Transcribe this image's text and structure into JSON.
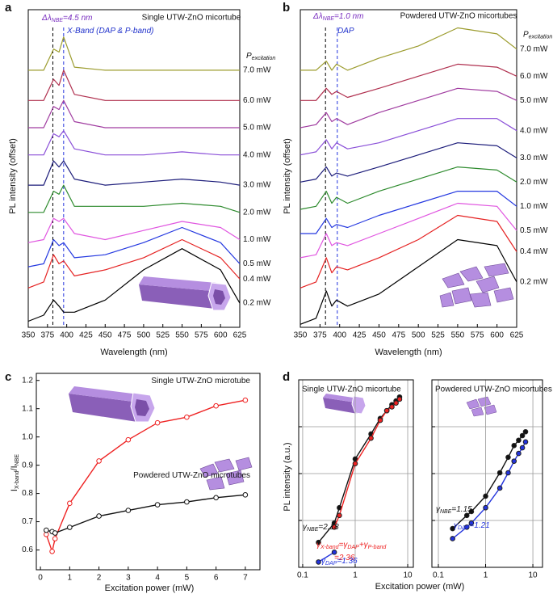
{
  "chart_data": [
    {
      "type": "line",
      "panel_label": "a",
      "title": "Single UTW-ZnO micortube",
      "xlabel": "Wavelength (nm)",
      "ylabel": "PL intensity (offset)",
      "x": [
        350,
        370,
        383,
        390,
        396,
        410,
        450,
        500,
        550,
        600,
        625
      ],
      "xlim": [
        350,
        625
      ],
      "xticks": [
        350,
        375,
        400,
        425,
        450,
        475,
        500,
        525,
        550,
        575,
        600,
        625
      ],
      "ylim": [
        0,
        105
      ],
      "legend": "right",
      "legend_title": [
        "P",
        "excitation"
      ],
      "annotations": [
        {
          "text": [
            "Δλ",
            "NBE",
            "=4.5 nm"
          ],
          "color": "#7a2fc0"
        },
        {
          "text": [
            "X-Band (DAP & P-band)"
          ],
          "color": "#2233cc"
        }
      ],
      "reference_lines": [
        {
          "x": 382,
          "color": "#000000"
        },
        {
          "x": 396,
          "color": "#2233dd"
        }
      ],
      "series": [
        {
          "name": "7.0 mW",
          "color": "#9c9c2e",
          "values": [
            85,
            85,
            92,
            91,
            96,
            86,
            85,
            85,
            85,
            85,
            85
          ]
        },
        {
          "name": "6.0 mW",
          "color": "#b0304f",
          "values": [
            75,
            75,
            82,
            80,
            85,
            77,
            75,
            75,
            75,
            75,
            75
          ]
        },
        {
          "name": "5.0 mW",
          "color": "#a03ca0",
          "values": [
            66,
            66,
            73,
            72,
            75,
            68,
            66,
            66,
            66,
            66,
            66
          ]
        },
        {
          "name": "4.0 mW",
          "color": "#8a4fd8",
          "values": [
            57,
            57,
            64,
            63,
            65,
            59,
            57,
            57,
            58,
            57,
            57
          ]
        },
        {
          "name": "3.0 mW",
          "color": "#1c1c7a",
          "values": [
            47,
            47,
            55,
            53,
            55,
            49,
            47,
            48,
            49,
            48,
            47
          ]
        },
        {
          "name": "2.0 mW",
          "color": "#2e8b2e",
          "values": [
            38,
            38,
            45,
            44,
            47,
            40,
            40,
            40,
            41,
            40,
            38
          ]
        },
        {
          "name": "1.0 mW",
          "color": "#e055e0",
          "values": [
            28,
            29,
            36,
            35,
            36,
            31,
            29,
            32,
            35,
            33,
            29
          ]
        },
        {
          "name": "0.5 mW",
          "color": "#2438e0",
          "values": [
            20,
            21,
            29,
            27,
            28,
            23,
            24,
            28,
            33,
            28,
            21
          ]
        },
        {
          "name": "0.4 mW",
          "color": "#e52222",
          "values": [
            13,
            15,
            24,
            21,
            22,
            17,
            19,
            23,
            29,
            23,
            16
          ]
        },
        {
          "name": "0.2 mW",
          "color": "#000000",
          "values": [
            2,
            4,
            9,
            7,
            5,
            5,
            9,
            19,
            26,
            19,
            8
          ]
        }
      ]
    },
    {
      "type": "line",
      "panel_label": "b",
      "title": "Powdered UTW-ZnO micortubes",
      "xlabel": "Wavelength (nm)",
      "ylabel": "PL intensity (offset)",
      "x": [
        350,
        370,
        383,
        390,
        396,
        410,
        450,
        500,
        550,
        600,
        625
      ],
      "xlim": [
        350,
        625
      ],
      "xticks": [
        350,
        375,
        400,
        425,
        450,
        475,
        500,
        525,
        550,
        575,
        600,
        625
      ],
      "ylim": [
        0,
        105
      ],
      "legend": "right",
      "legend_title": [
        "P",
        "excitation"
      ],
      "annotations": [
        {
          "text": [
            "Δλ",
            "NBE",
            "=1.0 nm"
          ],
          "color": "#7a2fc0"
        },
        {
          "text": [
            "DAP"
          ],
          "color": "#2233cc"
        }
      ],
      "reference_lines": [
        {
          "x": 382,
          "color": "#000000"
        },
        {
          "x": 397,
          "color": "#2233dd"
        }
      ],
      "series": [
        {
          "name": "7.0 mW",
          "color": "#9c9c2e",
          "values": [
            85,
            85,
            88,
            85,
            87,
            85,
            89,
            93,
            99,
            97,
            92
          ]
        },
        {
          "name": "6.0 mW",
          "color": "#b0304f",
          "values": [
            75,
            75,
            79,
            77,
            78,
            76,
            79,
            83,
            87,
            86,
            83
          ]
        },
        {
          "name": "5.0 mW",
          "color": "#a03ca0",
          "values": [
            66,
            67,
            71,
            68,
            69,
            67,
            71,
            75,
            79,
            78,
            75
          ]
        },
        {
          "name": "4.0 mW",
          "color": "#8a4fd8",
          "values": [
            57,
            58,
            62,
            59,
            61,
            59,
            61,
            65,
            69,
            69,
            65
          ]
        },
        {
          "name": "3.0 mW",
          "color": "#1c1c7a",
          "values": [
            48,
            49,
            53,
            50,
            51,
            50,
            53,
            57,
            61,
            60,
            56
          ]
        },
        {
          "name": "2.0 mW",
          "color": "#2e8b2e",
          "values": [
            39,
            40,
            45,
            41,
            43,
            41,
            45,
            49,
            53,
            52,
            48
          ]
        },
        {
          "name": "1.0 mW",
          "color": "#2438e0",
          "values": [
            31,
            31,
            36,
            33,
            34,
            33,
            37,
            41,
            45,
            45,
            40
          ]
        },
        {
          "name": "0.5 mW",
          "color": "#e055e0",
          "values": [
            23,
            24,
            31,
            27,
            28,
            27,
            31,
            36,
            41,
            40,
            32
          ]
        },
        {
          "name": "0.4 mW",
          "color": "#e52222",
          "values": [
            13,
            15,
            23,
            18,
            20,
            19,
            23,
            29,
            37,
            35,
            25
          ]
        },
        {
          "name": "0.2 mW",
          "color": "#000000",
          "values": [
            1,
            3,
            12,
            7,
            9,
            7,
            11,
            20,
            29,
            27,
            15
          ]
        }
      ]
    },
    {
      "type": "line",
      "panel_label": "c",
      "xlabel": "Excitation power (mW)",
      "ylabel": [
        "I",
        "X-band",
        "/I",
        "NBE"
      ],
      "xlim": [
        -0.14,
        7.5
      ],
      "xticks": [
        0,
        1,
        2,
        3,
        4,
        5,
        6,
        7
      ],
      "ylim": [
        0.53,
        1.225
      ],
      "yticks": [
        0.6,
        0.7,
        0.8,
        0.9,
        {
          "value": 1,
          "label": "1.0"
        },
        1.1,
        1.2
      ],
      "legend": "inline",
      "markers": "open",
      "series": [
        {
          "name": "Single UTW-ZnO microtube",
          "color": "#ee2222",
          "x": [
            0.2,
            0.4,
            0.5,
            1,
            2,
            3,
            4,
            5,
            6,
            7
          ],
          "values": [
            0.655,
            0.595,
            0.64,
            0.765,
            0.915,
            0.99,
            1.05,
            1.07,
            1.11,
            1.13
          ]
        },
        {
          "name": "Powdered UTW-ZnO microtubes",
          "color": "#111111",
          "x": [
            0.2,
            0.4,
            0.5,
            1,
            2,
            3,
            4,
            5,
            6,
            7
          ],
          "values": [
            0.67,
            0.665,
            0.66,
            0.68,
            0.72,
            0.74,
            0.76,
            0.77,
            0.785,
            0.795
          ]
        }
      ]
    },
    {
      "type": "line",
      "panel_label": "d",
      "title": "Single UTW-ZnO micortube",
      "xlabel": "Excitation power (mW)",
      "ylabel": "PL intensity (a.u.)",
      "xscale": "log",
      "yscale": "log",
      "xlim": [
        0.084,
        12.8
      ],
      "xticks": [
        0.1,
        1,
        10
      ],
      "ylim": [
        1,
        10000
      ],
      "yticks": [
        10,
        100,
        1000
      ],
      "ytick_labels": false,
      "grid": true,
      "markers": "filled",
      "annotations": [
        {
          "text": [
            "γ",
            "NBE",
            "=2.18"
          ],
          "color": "#111111"
        },
        {
          "text": [
            "γ",
            "X-band",
            "=γ",
            "DAP",
            "+γ",
            "P-band"
          ],
          "color": "#ee2222"
        },
        {
          "text": [
            "=2.36"
          ],
          "color": "#ee2222"
        },
        {
          "text": [
            "γ",
            "DAP",
            "=1.36"
          ],
          "color": "#2233dd"
        }
      ],
      "series": [
        {
          "color": "#111111",
          "x": [
            0.2,
            0.4,
            0.5,
            1,
            2,
            3,
            4,
            5,
            6,
            7
          ],
          "values": [
            3.4,
            8.8,
            18.7,
            205,
            700,
            1500,
            2200,
            2950,
            3550,
            4300
          ]
        },
        {
          "color": "#ee2222",
          "x": [
            0.4,
            0.5,
            1,
            2,
            3,
            4,
            5,
            6,
            7
          ],
          "values": [
            7.2,
            12.8,
            163,
            570,
            1370,
            2200,
            2650,
            3200,
            3860
          ]
        },
        {
          "color": "#2233dd",
          "x": [
            0.2,
            0.4
          ],
          "values": [
            1.3,
            2.1
          ]
        }
      ]
    },
    {
      "type": "line",
      "title": "Powdered UTW-ZnO micortubes",
      "xscale": "log",
      "yscale": "log",
      "xlim": [
        0.073,
        16
      ],
      "xticks": [
        0.1,
        1,
        10
      ],
      "ylim": [
        1,
        10000
      ],
      "yticks": [
        10,
        100,
        1000
      ],
      "ytick_labels": false,
      "grid": true,
      "markers": "filled",
      "annotations": [
        {
          "text": [
            "γ",
            "NBE",
            "=1.15"
          ],
          "color": "#111111"
        },
        {
          "text": [
            "γ",
            "DAP",
            "=1.21"
          ],
          "color": "#2233dd"
        }
      ],
      "series": [
        {
          "color": "#111111",
          "x": [
            0.2,
            0.4,
            0.5,
            1,
            2,
            3,
            4,
            5,
            6,
            7
          ],
          "values": [
            6.7,
            12.8,
            15.5,
            33,
            104,
            223,
            396,
            514,
            646,
            780
          ]
        },
        {
          "color": "#2233dd",
          "x": [
            0.2,
            0.4,
            0.5,
            1,
            2,
            3,
            4,
            5,
            6,
            7
          ],
          "values": [
            4.1,
            7.2,
            8.8,
            18.7,
            49,
            104,
            184,
            269,
            355,
            474
          ]
        }
      ]
    }
  ]
}
